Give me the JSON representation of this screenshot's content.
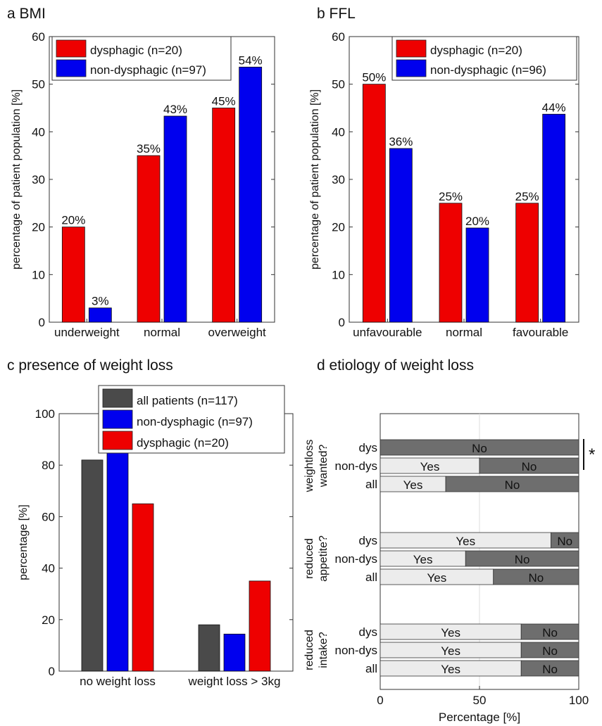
{
  "colors": {
    "red": "#ee0000",
    "blue": "#0000ee",
    "dark": "#4a4a4a",
    "light": "#ececec",
    "nogray": "#6e6e6e"
  },
  "chart_data": [
    {
      "panel": "a BMI",
      "type": "bar",
      "ylabel": "percentage of patient population [%]",
      "ylim": [
        0,
        60
      ],
      "yticks": [
        0,
        10,
        20,
        30,
        40,
        50,
        60
      ],
      "legend_position": "top-left",
      "categories": [
        "underweight",
        "normal",
        "overweight"
      ],
      "series": [
        {
          "name": "dysphagic (n=20)",
          "values": [
            20,
            35,
            45
          ],
          "labels": [
            "20%",
            "35%",
            "45%"
          ]
        },
        {
          "name": "non-dysphagic (n=97)",
          "values": [
            3,
            43.3,
            53.6
          ],
          "labels": [
            "3%",
            "43%",
            "54%"
          ]
        }
      ]
    },
    {
      "panel": "b FFL",
      "type": "bar",
      "ylabel": "percentage of patient population [%]",
      "ylim": [
        0,
        60
      ],
      "yticks": [
        0,
        10,
        20,
        30,
        40,
        50,
        60
      ],
      "legend_position": "top-right",
      "categories": [
        "unfavourable",
        "normal",
        "favourable"
      ],
      "series": [
        {
          "name": "dysphagic (n=20)",
          "values": [
            50,
            25,
            25
          ],
          "labels": [
            "50%",
            "25%",
            "25%"
          ]
        },
        {
          "name": "non-dysphagic (n=96)",
          "values": [
            36.5,
            19.8,
            43.7
          ],
          "labels": [
            "36%",
            "20%",
            "44%"
          ]
        }
      ]
    },
    {
      "panel": "c presence of weight loss",
      "type": "bar",
      "ylabel": "percentage [%]",
      "ylim": [
        0,
        100
      ],
      "yticks": [
        0,
        20,
        40,
        60,
        80,
        100
      ],
      "legend_position": "top-right",
      "categories": [
        "no weight loss",
        "weight loss > 3kg"
      ],
      "series": [
        {
          "name": "all patients (n=117)",
          "values": [
            82,
            18
          ]
        },
        {
          "name": "non-dysphagic (n=97)",
          "values": [
            85.6,
            14.4
          ]
        },
        {
          "name": "dysphagic (n=20)",
          "values": [
            65,
            35
          ]
        }
      ]
    },
    {
      "panel": "d etiology of weight loss",
      "type": "bar",
      "orientation": "horizontal",
      "stacked": true,
      "xlabel": "Percentage [%]",
      "xlim": [
        0,
        100
      ],
      "xticks": [
        0,
        50,
        100
      ],
      "significance_marker": "*",
      "groups": [
        {
          "label": "weightloss wanted?",
          "rows": [
            {
              "label": "dys",
              "yes": 0,
              "no": 100
            },
            {
              "label": "non-dys",
              "yes": 50,
              "no": 50
            },
            {
              "label": "all",
              "yes": 33,
              "no": 67
            }
          ]
        },
        {
          "label": "reduced appetite?",
          "rows": [
            {
              "label": "dys",
              "yes": 86,
              "no": 14
            },
            {
              "label": "non-dys",
              "yes": 43,
              "no": 57
            },
            {
              "label": "all",
              "yes": 57,
              "no": 43
            }
          ]
        },
        {
          "label": "reduced intake?",
          "rows": [
            {
              "label": "dys",
              "yes": 71,
              "no": 29
            },
            {
              "label": "non-dys",
              "yes": 71,
              "no": 29
            },
            {
              "label": "all",
              "yes": 71,
              "no": 29
            }
          ]
        }
      ],
      "yes_label": "Yes",
      "no_label": "No"
    }
  ]
}
